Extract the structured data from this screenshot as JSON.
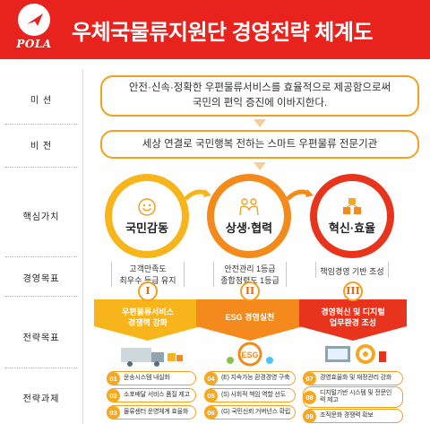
{
  "header": {
    "logo_text": "POLA",
    "title": "우체국물류지원단 경영전략 체계도"
  },
  "labels": {
    "mission": "미  션",
    "vision": "비  전",
    "core_values": "핵심가치",
    "mgmt_goals": "경영목표",
    "strategic_goals": "전략목표",
    "strategic_tasks": "전략과제"
  },
  "mission": {
    "line1": "안전·신속·정확한 우편물류서비스를 효율적으로 제공함으로써",
    "line2": "국민의 편익 증진에 이바지한다."
  },
  "vision": {
    "text": "세상 연결로 국민행복 전하는 스마트 우편물류 전문기관"
  },
  "core_values": [
    {
      "label": "국민감동",
      "icon": "smile-icon",
      "color": "#f7b51b"
    },
    {
      "label": "상생·협력",
      "icon": "people-icon",
      "color": "#f48a1c"
    },
    {
      "label": "혁신·효율",
      "icon": "boxes-icon",
      "color": "#e8341c"
    }
  ],
  "mgmt_goals": [
    {
      "line1": "고객만족도",
      "line2": "최우수 등급 유지"
    },
    {
      "line1": "안전관리 1등급",
      "line2": "종합청렴도 1등급"
    },
    {
      "line1": "책임경영 기반 조성",
      "line2": ""
    }
  ],
  "strategic_goals": [
    {
      "roman": "I",
      "line1": "우편물류서비스",
      "line2": "경쟁력 강화",
      "color": "#f7b51b"
    },
    {
      "roman": "II",
      "line1": "ESG 경영실천",
      "line2": "",
      "color": "#f48a1c"
    },
    {
      "roman": "III",
      "line1": "경영혁신 및 디지털",
      "line2": "업무환경 조성",
      "color": "#e8341c"
    }
  ],
  "tasks": [
    [
      {
        "num": "01",
        "text": "운송시스템 내실화"
      },
      {
        "num": "02",
        "text": "소포배달 서비스 품질 제고"
      },
      {
        "num": "03",
        "text": "물류센터 운영체계 효율화"
      }
    ],
    [
      {
        "num": "04",
        "text": "(E) 지속가능 환경경영 구축"
      },
      {
        "num": "05",
        "text": "(S) 사회적 책임 역할 선도"
      },
      {
        "num": "06",
        "text": "(G) 국민신뢰 거버넌스 확립"
      }
    ],
    [
      {
        "num": "07",
        "text": "경영효율화 및 재정관리 강화"
      },
      {
        "num": "08",
        "text": "디지털기반 시스템 및 전문인력 제고"
      },
      {
        "num": "09",
        "text": "조직문화 경쟁력 확보"
      }
    ]
  ],
  "colors": {
    "brand_red": "#e8231d",
    "orange": "#f2a01e",
    "yellow": "#f7b51b",
    "dark_orange": "#f48a1c"
  }
}
